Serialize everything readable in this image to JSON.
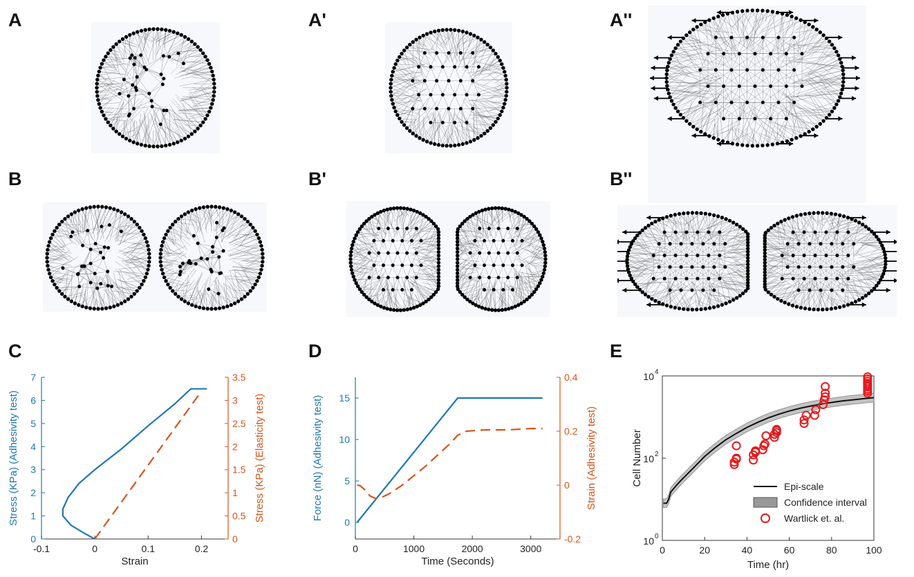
{
  "panel_labels": {
    "A": "A",
    "A1": "A'",
    "A2": "A''",
    "B": "B",
    "B1": "B'",
    "B2": "B''",
    "C": "C",
    "D": "D",
    "E": "E"
  },
  "chart_data": [
    {
      "id": "C",
      "type": "line",
      "xlabel": "Strain",
      "ylabel_left": "Stress (KPa) (Adhesivity test)",
      "ylabel_right": "Stress (KPa) (Elasticity test)",
      "xlim": [
        -0.1,
        0.25
      ],
      "ylim_left": [
        0,
        7
      ],
      "ylim_right": [
        0,
        3.5
      ],
      "xticks": [
        "-0.1",
        "0",
        "0.1",
        "0.2"
      ],
      "xtick_values": [
        -0.1,
        0,
        0.1,
        0.2
      ],
      "yticks_left": [
        "0",
        "1",
        "2",
        "3",
        "4",
        "5",
        "6",
        "7"
      ],
      "yticks_right": [
        "0",
        "0.5",
        "1",
        "1.5",
        "2",
        "2.5",
        "3",
        "3.5"
      ],
      "series": [
        {
          "axis": "left",
          "style": "solid",
          "color": "#1f77b4",
          "x": [
            0.0,
            -0.02,
            -0.045,
            -0.06,
            -0.06,
            -0.05,
            -0.03,
            0.0,
            0.05,
            0.1,
            0.15,
            0.18,
            0.21
          ],
          "y": [
            0.0,
            0.25,
            0.6,
            1.0,
            1.3,
            1.8,
            2.4,
            3.0,
            3.9,
            4.9,
            5.85,
            6.5,
            6.5
          ]
        },
        {
          "axis": "right",
          "style": "dashed",
          "color": "#d95319",
          "x": [
            0.0,
            0.05,
            0.1,
            0.15,
            0.2
          ],
          "y": [
            0.0,
            0.8,
            1.6,
            2.4,
            3.2
          ]
        }
      ]
    },
    {
      "id": "D",
      "type": "line",
      "xlabel": "Time (Seconds)",
      "ylabel_left": "Force (nN) (Adhesivity test)",
      "ylabel_right": "Strain  (Adhesivity test)",
      "xlim": [
        0,
        3500
      ],
      "ylim_left": [
        -2,
        17.5
      ],
      "ylim_right": [
        -0.2,
        0.4
      ],
      "xticks": [
        "0",
        "1000",
        "2000",
        "3000"
      ],
      "xtick_values": [
        0,
        1000,
        2000,
        3000
      ],
      "yticks_left": [
        "0",
        "5",
        "10",
        "15"
      ],
      "ytick_left_values": [
        0,
        5,
        10,
        15
      ],
      "yticks_right": [
        "-0.2",
        "0",
        "0.2",
        "0.4"
      ],
      "ytick_right_values": [
        -0.2,
        0,
        0.2,
        0.4
      ],
      "series": [
        {
          "axis": "left",
          "style": "solid",
          "color": "#1f77b4",
          "x": [
            30,
            1750,
            3200
          ],
          "y": [
            0,
            15,
            15
          ]
        },
        {
          "axis": "right",
          "style": "dashed",
          "color": "#d95319",
          "x": [
            30,
            80,
            150,
            250,
            350,
            450,
            600,
            800,
            1000,
            1200,
            1400,
            1600,
            1750,
            1800,
            1900,
            2200,
            2600,
            3000,
            3200
          ],
          "y": [
            0.0,
            -0.002,
            -0.015,
            -0.04,
            -0.05,
            -0.045,
            -0.03,
            0.0,
            0.035,
            0.07,
            0.11,
            0.15,
            0.185,
            0.19,
            0.2,
            0.205,
            0.205,
            0.21,
            0.21
          ]
        }
      ]
    },
    {
      "id": "E",
      "type": "line",
      "xlabel": "Time (hr)",
      "ylabel": "Cell Number",
      "yscale": "log",
      "xlim": [
        0,
        100
      ],
      "ylim": [
        1,
        10000
      ],
      "xticks": [
        "0",
        "20",
        "40",
        "60",
        "80",
        "100"
      ],
      "xtick_values": [
        0,
        20,
        40,
        60,
        80,
        100
      ],
      "yticks": [
        {
          "base": "10",
          "exp": "0",
          "value": 1
        },
        {
          "base": "10",
          "exp": "2",
          "value": 100
        },
        {
          "base": "10",
          "exp": "4",
          "value": 10000
        }
      ],
      "legend": [
        "Epi-scale",
        "Confidence interval",
        "Wartlick et. al."
      ],
      "series": [
        {
          "name": "Epi-scale",
          "style": "solid",
          "color": "#111111",
          "x": [
            0.5,
            2,
            3,
            4,
            6,
            8,
            10,
            12,
            15,
            20,
            25,
            30,
            35,
            40,
            45,
            50,
            55,
            60,
            65,
            70,
            75,
            80,
            85,
            90,
            95,
            100
          ],
          "y": [
            8,
            8,
            10,
            15,
            20,
            26,
            33,
            42,
            60,
            110,
            180,
            280,
            400,
            560,
            740,
            950,
            1170,
            1400,
            1630,
            1850,
            2060,
            2260,
            2450,
            2620,
            2790,
            2950
          ]
        },
        {
          "name": "Confidence interval",
          "style": "band",
          "color": "#999999",
          "width_factor": 1.28
        },
        {
          "name": "Wartlick et. al.",
          "style": "circles",
          "color": "#e41a1c",
          "x": [
            34,
            34,
            35,
            35,
            35,
            43,
            43,
            44,
            44,
            47.5,
            48,
            48.5,
            49,
            53,
            53,
            54,
            54,
            54,
            54,
            67,
            67,
            68,
            72,
            72.5,
            76,
            76.5,
            77,
            77,
            77,
            97,
            97,
            97,
            97,
            97,
            97,
            97,
            97,
            97
          ],
          "y": [
            70,
            80,
            100,
            95,
            200,
            90,
            120,
            150,
            140,
            160,
            200,
            220,
            350,
            320,
            380,
            420,
            470,
            480,
            500,
            700,
            850,
            1100,
            1100,
            1500,
            2000,
            2600,
            3100,
            3800,
            5500,
            3800,
            4300,
            4800,
            5400,
            6000,
            6600,
            7400,
            8400,
            9500
          ]
        }
      ]
    }
  ]
}
